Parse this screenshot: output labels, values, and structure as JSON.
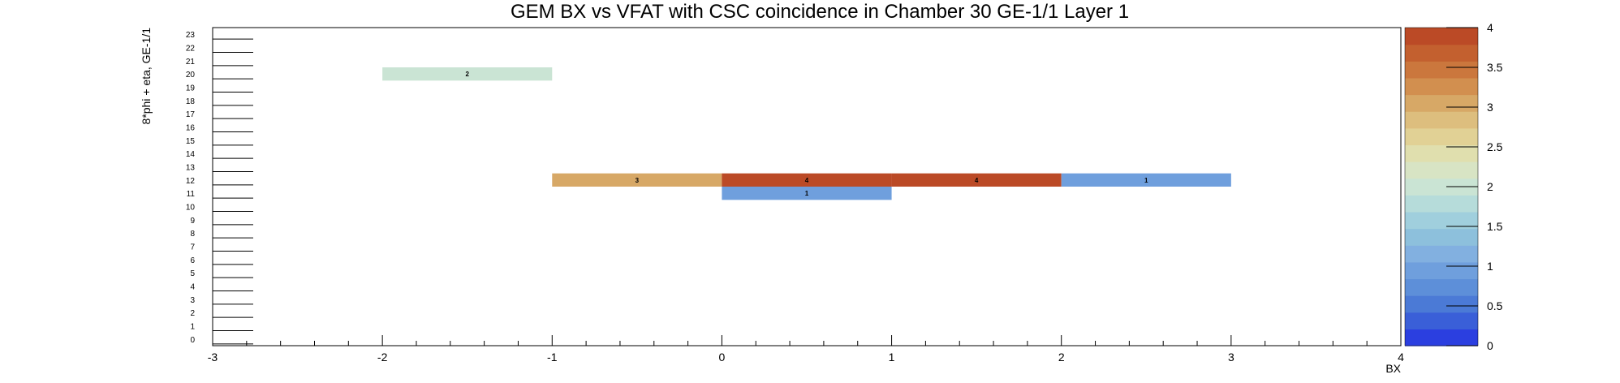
{
  "chart_data": {
    "type": "heatmap",
    "title": "GEM BX vs VFAT with CSC coincidence in Chamber 30 GE-1/1 Layer 1",
    "xlabel": "BX",
    "ylabel": "8*phi + eta, GE-1/1",
    "xlim": [
      -3,
      4
    ],
    "ylim": [
      0,
      24
    ],
    "x_ticks": [
      "-3",
      "-2",
      "-1",
      "0",
      "1",
      "2",
      "3",
      "4"
    ],
    "y_ticks": [
      "0",
      "1",
      "2",
      "3",
      "4",
      "5",
      "6",
      "7",
      "8",
      "9",
      "10",
      "11",
      "12",
      "13",
      "14",
      "15",
      "16",
      "17",
      "18",
      "19",
      "20",
      "21",
      "22",
      "23"
    ],
    "zlim": [
      0,
      4
    ],
    "z_ticks": [
      "0",
      "0.5",
      "1",
      "1.5",
      "2",
      "2.5",
      "3",
      "3.5",
      "4"
    ],
    "colorscale": [
      "#2b3fe0",
      "#3a5fd8",
      "#4b7ad6",
      "#5d8fd9",
      "#6f9fdd",
      "#82b0e0",
      "#8dc0dc",
      "#a0cfdd",
      "#b6dcda",
      "#cae4d4",
      "#d8e4c4",
      "#e0dfae",
      "#e1d195",
      "#ddbe7e",
      "#d7a866",
      "#d28f4f",
      "#cb773d",
      "#c3602f",
      "#bb4a26"
    ],
    "cells": [
      {
        "x": -2,
        "y": 20,
        "value": 2,
        "label": "2"
      },
      {
        "x": -1,
        "y": 12,
        "value": 3,
        "label": "3"
      },
      {
        "x": 0,
        "y": 12,
        "value": 4,
        "label": "4"
      },
      {
        "x": 1,
        "y": 12,
        "value": 4,
        "label": "4"
      },
      {
        "x": 2,
        "y": 12,
        "value": 1,
        "label": "1"
      },
      {
        "x": 0,
        "y": 11,
        "value": 1,
        "label": "1"
      }
    ]
  }
}
